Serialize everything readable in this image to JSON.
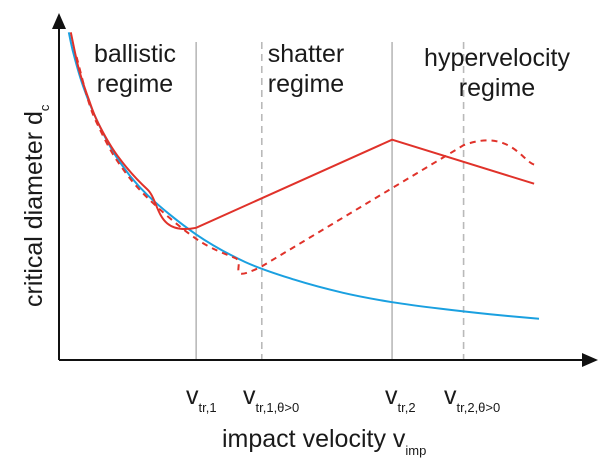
{
  "chart_data": {
    "type": "line",
    "title": "",
    "xlabel": {
      "main": "impact velocity v",
      "sub": "imp"
    },
    "ylabel": {
      "main": "critical diameter d",
      "sub": "c"
    },
    "axis_ticks": "none",
    "regimes": [
      {
        "name": "ballistic",
        "lines": [
          "ballistic",
          "regime"
        ]
      },
      {
        "name": "shatter",
        "lines": [
          "shatter",
          "regime"
        ]
      },
      {
        "name": "hypervelocity",
        "lines": [
          "hypervelocity",
          "regime"
        ]
      }
    ],
    "transitions": [
      {
        "main": "v",
        "sub": "tr,1",
        "x": 2.0,
        "line": "solid"
      },
      {
        "main": "v",
        "sub": "tr,1,θ>0",
        "x": 2.67,
        "line": "dashed"
      },
      {
        "main": "v",
        "sub": "tr,2",
        "x": 4.0,
        "line": "solid"
      },
      {
        "main": "v",
        "sub": "tr,2,θ>0",
        "x": 4.73,
        "line": "dashed"
      }
    ],
    "xlim": [
      0.6,
      6.0
    ],
    "ylim": [
      0,
      6.1
    ],
    "series": [
      {
        "color": "#1aa0e0",
        "style": "solid",
        "x": [
          0.7,
          0.75,
          0.85,
          1.0,
          1.2,
          1.5,
          2.0,
          2.5,
          3.0,
          3.5,
          4.0,
          4.5,
          5.0,
          5.5
        ],
        "y": [
          5.95,
          5.55,
          4.95,
          4.3,
          3.65,
          3.0,
          2.28,
          1.78,
          1.46,
          1.22,
          1.05,
          0.93,
          0.83,
          0.75
        ]
      },
      {
        "color": "#e0322a",
        "style": "solid",
        "x": [
          0.72,
          0.8,
          0.9,
          1.0,
          1.2,
          1.5,
          2.0,
          4.0,
          5.45
        ],
        "y": [
          5.95,
          5.3,
          4.75,
          4.3,
          3.7,
          3.1,
          2.4,
          4.0,
          3.2
        ]
      },
      {
        "color": "#e0322a",
        "style": "dashed",
        "x": [
          0.78,
          0.9,
          1.0,
          1.2,
          1.5,
          2.0,
          2.4,
          2.67,
          4.73,
          5.45
        ],
        "y": [
          5.5,
          4.7,
          4.25,
          3.6,
          2.95,
          2.2,
          1.85,
          1.7,
          3.9,
          3.55
        ]
      }
    ],
    "colors": {
      "axis": "#111111",
      "guide": "#b9b9b9"
    }
  }
}
